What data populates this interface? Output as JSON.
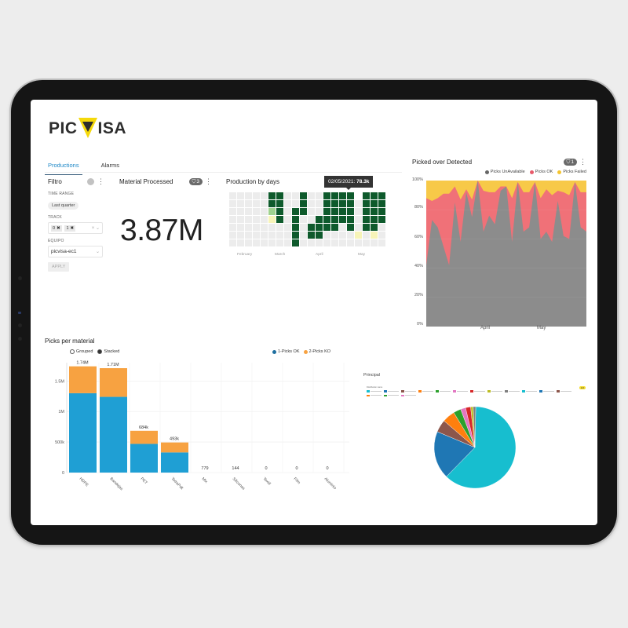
{
  "app": {
    "brand": "PICVISA",
    "brand_parts": {
      "pre": "PIC",
      "post": "ISA"
    },
    "brand_colors": {
      "text": "#2d2d2d",
      "triangle": "#f5d90a"
    }
  },
  "tabs": [
    {
      "label": "Productions",
      "active": true
    },
    {
      "label": "Alarms",
      "active": false
    }
  ],
  "filtro": {
    "title": "Filtro",
    "time_range_label": "TIME RANGE",
    "time_range_value": "Last quarter",
    "track_label": "TRACK",
    "track_values": [
      "0",
      "1"
    ],
    "equipo_label": "EQUIPO",
    "equipo_value": "picvisa-ec1",
    "apply_label": "APPLY"
  },
  "material_processed": {
    "title": "Material Processed",
    "filter_count": "3",
    "value": "3.87M"
  },
  "production_by_days": {
    "title": "Production by days",
    "tooltip_date": "02/05/2021:",
    "tooltip_value": "78.3k",
    "months": [
      "February",
      "March",
      "April",
      "May"
    ]
  },
  "picked_over_detected": {
    "title": "Picked over Detected",
    "filter_count": "1",
    "legend": [
      "Picks UnAvailable",
      "Picks OK",
      "Picks Failed"
    ],
    "y_ticks": [
      "100%",
      "80%",
      "60%",
      "40%",
      "20%",
      "0%"
    ],
    "x_ticks": [
      "April",
      "May"
    ]
  },
  "picks_per_material": {
    "title": "Picks per material",
    "modes": [
      {
        "label": "Grouped",
        "selected": false
      },
      {
        "label": "Stacked",
        "selected": true
      }
    ],
    "legend": [
      "1-Picks OK",
      "2-Picks KO"
    ]
  },
  "principal": {
    "title": "Principal",
    "legend_title": "Distribution name",
    "badge": "1/2"
  },
  "chart_data": [
    {
      "type": "heatmap",
      "title": "Production by days",
      "x_labels": [
        "February",
        "March",
        "April",
        "May"
      ],
      "tooltip": {
        "date": "02/05/2021",
        "value": "78.3k"
      },
      "note": "calendar heatmap, 7 rows (weekdays) x 20 columns (weeks); dark green = high production"
    },
    {
      "type": "area",
      "title": "Picked over Detected",
      "stacked": true,
      "normalized": true,
      "ylim": [
        0,
        100
      ],
      "y_ticks": [
        "0%",
        "20%",
        "40%",
        "60%",
        "80%",
        "100%"
      ],
      "x_ticks": [
        "April",
        "May"
      ],
      "series": [
        {
          "name": "Picks UnAvailable",
          "color": "#8c8c8c",
          "values": [
            42,
            73,
            68,
            55,
            42,
            85,
            58,
            92,
            75,
            100,
            65,
            76,
            70,
            93,
            96,
            58,
            99,
            65,
            68,
            99,
            60,
            65,
            58,
            86,
            62,
            60,
            99,
            68,
            65
          ]
        },
        {
          "name": "Picks OK",
          "color": "#f07178",
          "values": [
            46,
            13,
            20,
            36,
            49,
            11,
            29,
            2,
            12,
            0,
            28,
            16,
            22,
            3,
            0,
            30,
            0,
            27,
            24,
            0,
            28,
            29,
            32,
            7,
            30,
            30,
            0,
            24,
            27
          ]
        },
        {
          "name": "Picks Failed",
          "color": "#f7c948",
          "values": [
            12,
            14,
            12,
            9,
            9,
            4,
            13,
            6,
            13,
            0,
            7,
            8,
            8,
            4,
            4,
            12,
            1,
            8,
            8,
            1,
            12,
            6,
            10,
            7,
            8,
            10,
            1,
            8,
            8
          ]
        }
      ]
    },
    {
      "type": "bar",
      "title": "Picks per material",
      "stacked": true,
      "categories": [
        "HDPE",
        "Bandejas",
        "PET",
        "TetraPak",
        "Mix",
        "Siliconas",
        "Textil",
        "Film",
        "Aluminio"
      ],
      "totals_labels": [
        "1.74M",
        "1.71M",
        "684k",
        "493k",
        "779",
        "144",
        "0",
        "0",
        "0"
      ],
      "series": [
        {
          "name": "1-Picks OK",
          "color": "#1f9fd4",
          "values": [
            1300000,
            1240000,
            470000,
            330000,
            600,
            110,
            0,
            0,
            0
          ]
        },
        {
          "name": "2-Picks KO",
          "color": "#f7a241",
          "values": [
            440000,
            470000,
            214000,
            163000,
            179,
            34,
            0,
            0,
            0
          ]
        }
      ],
      "y_ticks": [
        "0",
        "500k",
        "1M",
        "1.5M"
      ],
      "ylim": [
        0,
        1800000
      ]
    },
    {
      "type": "pie",
      "title": "Principal",
      "slices": [
        {
          "label": "slice-1",
          "value": 62,
          "color": "#17becf"
        },
        {
          "label": "slice-2",
          "value": 19,
          "color": "#1f77b4"
        },
        {
          "label": "slice-3",
          "value": 5,
          "color": "#8c564b"
        },
        {
          "label": "slice-4",
          "value": 5,
          "color": "#ff7f0e"
        },
        {
          "label": "slice-5",
          "value": 3,
          "color": "#2ca02c"
        },
        {
          "label": "slice-6",
          "value": 2,
          "color": "#e377c2"
        },
        {
          "label": "slice-7",
          "value": 2,
          "color": "#d62728"
        },
        {
          "label": "slice-8",
          "value": 1,
          "color": "#bcbd22"
        },
        {
          "label": "slice-9",
          "value": 1,
          "color": "#7f7f7f"
        }
      ]
    }
  ]
}
